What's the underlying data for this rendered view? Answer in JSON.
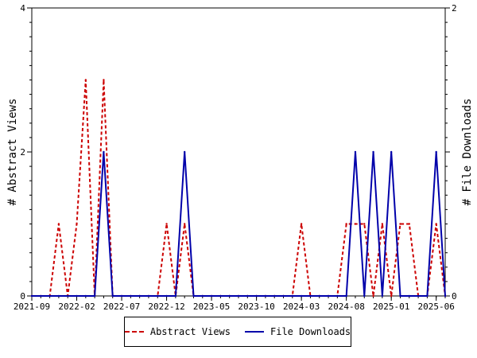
{
  "chart_data": {
    "type": "line",
    "x_tick_labels": [
      "2021-09",
      "2022-02",
      "2022-07",
      "2022-12",
      "2023-05",
      "2023-10",
      "2024-03",
      "2024-08",
      "2025-01",
      "2025-06"
    ],
    "y_left": {
      "label": "# Abstract Views",
      "ylim": [
        0,
        4
      ],
      "ticks": [
        "0",
        "2",
        "4"
      ]
    },
    "y_right": {
      "label": "# File Downloads",
      "ylim": [
        0,
        2
      ],
      "ticks": [
        "0",
        "1",
        "2"
      ]
    },
    "legend_position": "bottom",
    "grid": false,
    "series": [
      {
        "name": "Abstract Views",
        "axis": "left",
        "color": "#cc0000",
        "style": "dashed",
        "x": [
          "2021-09",
          "2021-10",
          "2021-11",
          "2021-12",
          "2022-01",
          "2022-02",
          "2022-03",
          "2022-04",
          "2022-05",
          "2022-06",
          "2022-07",
          "2022-08",
          "2022-09",
          "2022-10",
          "2022-11",
          "2022-12",
          "2023-01",
          "2023-02",
          "2023-03",
          "2023-04",
          "2023-05",
          "2023-06",
          "2023-07",
          "2023-08",
          "2023-09",
          "2023-10",
          "2023-11",
          "2023-12",
          "2024-01",
          "2024-02",
          "2024-03",
          "2024-04",
          "2024-05",
          "2024-06",
          "2024-07",
          "2024-08",
          "2024-09",
          "2024-10",
          "2024-11",
          "2024-12",
          "2025-01",
          "2025-02",
          "2025-03",
          "2025-04",
          "2025-05",
          "2025-06",
          "2025-07"
        ],
        "values": [
          0,
          0,
          0,
          1,
          0,
          1,
          3,
          0,
          3,
          0,
          0,
          0,
          0,
          0,
          0,
          1,
          0,
          1,
          0,
          0,
          0,
          0,
          0,
          0,
          0,
          0,
          0,
          0,
          0,
          0,
          1,
          0,
          0,
          0,
          0,
          1,
          1,
          1,
          0,
          1,
          0,
          1,
          1,
          0,
          0,
          1,
          0
        ]
      },
      {
        "name": "File Downloads",
        "axis": "right",
        "color": "#0000aa",
        "style": "solid",
        "x": [
          "2021-09",
          "2021-10",
          "2021-11",
          "2021-12",
          "2022-01",
          "2022-02",
          "2022-03",
          "2022-04",
          "2022-05",
          "2022-06",
          "2022-07",
          "2022-08",
          "2022-09",
          "2022-10",
          "2022-11",
          "2022-12",
          "2023-01",
          "2023-02",
          "2023-03",
          "2023-04",
          "2023-05",
          "2023-06",
          "2023-07",
          "2023-08",
          "2023-09",
          "2023-10",
          "2023-11",
          "2023-12",
          "2024-01",
          "2024-02",
          "2024-03",
          "2024-04",
          "2024-05",
          "2024-06",
          "2024-07",
          "2024-08",
          "2024-09",
          "2024-10",
          "2024-11",
          "2024-12",
          "2025-01",
          "2025-02",
          "2025-03",
          "2025-04",
          "2025-05",
          "2025-06",
          "2025-07"
        ],
        "values": [
          0,
          0,
          0,
          0,
          0,
          0,
          0,
          0,
          1,
          0,
          0,
          0,
          0,
          0,
          0,
          0,
          0,
          1,
          0,
          0,
          0,
          0,
          0,
          0,
          0,
          0,
          0,
          0,
          0,
          0,
          0,
          0,
          0,
          0,
          0,
          0,
          1,
          0,
          1,
          0,
          1,
          0,
          0,
          0,
          0,
          1,
          0
        ]
      }
    ]
  }
}
